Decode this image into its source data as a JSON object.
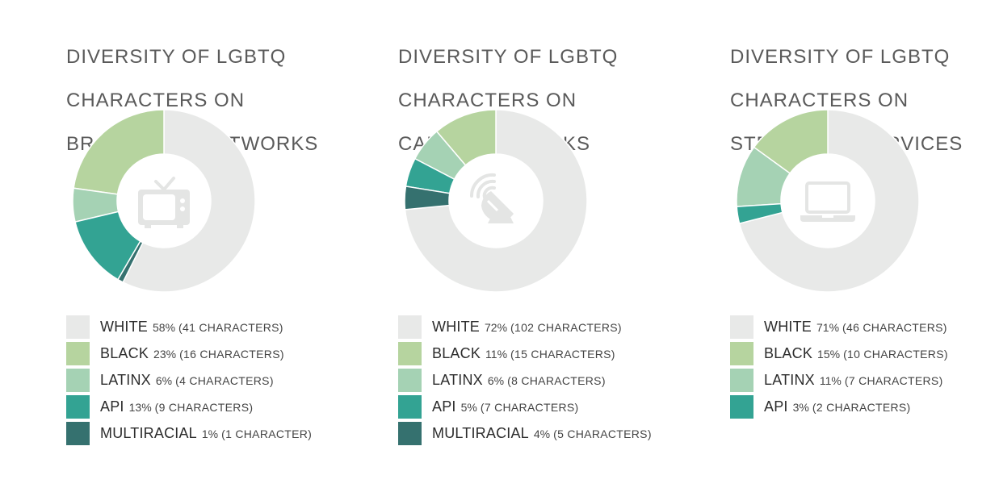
{
  "chart_data": [
    {
      "type": "pie",
      "title_lines": [
        "DIVERSITY OF LGBTQ",
        "CHARACTERS ON",
        "BROADCAST NETWORKS"
      ],
      "icon": "television-icon",
      "slices": [
        {
          "label": "WHITE",
          "value": 58,
          "pct_text": "58%",
          "count_text": "(41 CHARACTERS)",
          "color": "#e8e9e8"
        },
        {
          "label": "BLACK",
          "value": 23,
          "pct_text": "23%",
          "count_text": "(16 CHARACTERS)",
          "color": "#b6d49f"
        },
        {
          "label": "LATINX",
          "value": 6,
          "pct_text": "6%",
          "count_text": "(4 CHARACTERS)",
          "color": "#a5d2b4"
        },
        {
          "label": "API",
          "value": 13,
          "pct_text": "13%",
          "count_text": "(9 CHARACTERS)",
          "color": "#33a393"
        },
        {
          "label": "MULTIRACIAL",
          "value": 1,
          "pct_text": "1%",
          "count_text": "(1 CHARACTER)",
          "color": "#35716f"
        }
      ]
    },
    {
      "type": "pie",
      "title_lines": [
        "DIVERSITY OF LGBTQ",
        "CHARACTERS ON",
        "CABLE NETWORKS"
      ],
      "icon": "satellite-dish-icon",
      "slices": [
        {
          "label": "WHITE",
          "value": 72,
          "pct_text": "72%",
          "count_text": "(102 CHARACTERS)",
          "color": "#e8e9e8"
        },
        {
          "label": "BLACK",
          "value": 11,
          "pct_text": "11%",
          "count_text": "(15 CHARACTERS)",
          "color": "#b6d49f"
        },
        {
          "label": "LATINX",
          "value": 6,
          "pct_text": "6%",
          "count_text": "(8 CHARACTERS)",
          "color": "#a5d2b4"
        },
        {
          "label": "API",
          "value": 5,
          "pct_text": "5%",
          "count_text": "(7 CHARACTERS)",
          "color": "#33a393"
        },
        {
          "label": "MULTIRACIAL",
          "value": 4,
          "pct_text": "4%",
          "count_text": "(5 CHARACTERS)",
          "color": "#35716f"
        }
      ]
    },
    {
      "type": "pie",
      "title_lines": [
        "DIVERSITY OF LGBTQ",
        "CHARACTERS ON",
        "STREAMING SERVICES"
      ],
      "icon": "laptop-icon",
      "slices": [
        {
          "label": "WHITE",
          "value": 71,
          "pct_text": "71%",
          "count_text": "(46 CHARACTERS)",
          "color": "#e8e9e8"
        },
        {
          "label": "BLACK",
          "value": 15,
          "pct_text": "15%",
          "count_text": "(10 CHARACTERS)",
          "color": "#b6d49f"
        },
        {
          "label": "LATINX",
          "value": 11,
          "pct_text": "11%",
          "count_text": "(7 CHARACTERS)",
          "color": "#a5d2b4"
        },
        {
          "label": "API",
          "value": 3,
          "pct_text": "3%",
          "count_text": "(2 CHARACTERS)",
          "color": "#33a393"
        }
      ]
    }
  ]
}
